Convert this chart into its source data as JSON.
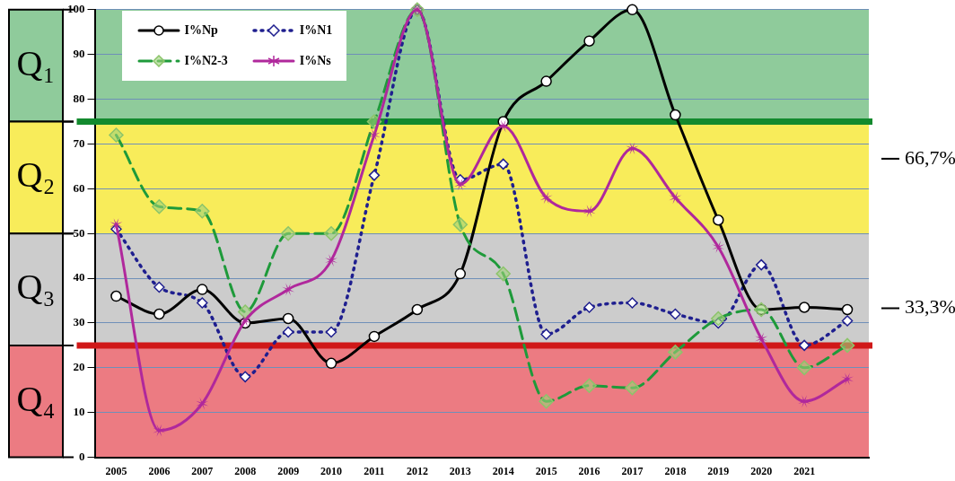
{
  "chart_data": {
    "type": "line",
    "categories": [
      "2005",
      "2006",
      "2007",
      "2008",
      "2009",
      "2010",
      "2011",
      "2012",
      "2013",
      "2014",
      "2015",
      "2016",
      "2017",
      "2018",
      "2019",
      "2020",
      "2021",
      null
    ],
    "series": [
      {
        "name": "I%Np",
        "color": "#000000",
        "marker": "circle",
        "line_style": "solid",
        "values": [
          36,
          32,
          37.5,
          30,
          31,
          21,
          27,
          33,
          41,
          75,
          84,
          93,
          100,
          76.5,
          53,
          33,
          33.5,
          33
        ]
      },
      {
        "name": "I%N1",
        "color": "#1f1f8f",
        "marker": "diamond",
        "line_style": "dotted",
        "values": [
          51,
          38,
          34.5,
          18,
          28,
          28,
          63,
          100,
          62,
          65.5,
          27.5,
          33.5,
          34.5,
          32,
          30,
          43,
          25,
          30.5
        ]
      },
      {
        "name": "I%N2-3",
        "color": "#1e9a3a",
        "marker": "diamond",
        "line_style": "dashed",
        "values": [
          72,
          56,
          55,
          32.5,
          50,
          50,
          75,
          100,
          52,
          41,
          12.5,
          16,
          15.5,
          23.5,
          31,
          33,
          20,
          25
        ]
      },
      {
        "name": "I%Ns",
        "color": "#b0289c",
        "marker": "star",
        "line_style": "solid",
        "values": [
          52,
          6,
          12,
          30.5,
          37.5,
          44,
          72,
          100,
          61,
          74,
          58,
          55,
          69,
          58,
          47,
          26.5,
          12.5,
          17.5
        ]
      }
    ],
    "ylim": [
      0,
      100
    ],
    "yticks": [
      0,
      10,
      20,
      30,
      40,
      50,
      60,
      70,
      80,
      90,
      100
    ],
    "grid": "y",
    "legend": "top left",
    "bands": [
      {
        "axis": "y",
        "from": 75,
        "to": 100,
        "label": "Q₁",
        "color": "#8fcb9b"
      },
      {
        "axis": "y",
        "from": 50,
        "to": 75,
        "label": "Q₂",
        "color": "#f8ec5a"
      },
      {
        "axis": "y",
        "from": 25,
        "to": 50,
        "label": "Q₃",
        "color": "#cccccc"
      },
      {
        "axis": "y",
        "from": 0,
        "to": 25,
        "label": "Q₄",
        "color": "#ec7b82"
      }
    ],
    "ref_lines": [
      {
        "axis": "y",
        "value": 75,
        "color": "#138a2e"
      },
      {
        "axis": "y",
        "value": 25,
        "color": "#d01818"
      },
      {
        "axis": "y",
        "value": 66.7,
        "label": "66,7%",
        "color": "#000000"
      },
      {
        "axis": "y",
        "value": 33.3,
        "label": "33,3%",
        "color": "#000000"
      }
    ]
  }
}
